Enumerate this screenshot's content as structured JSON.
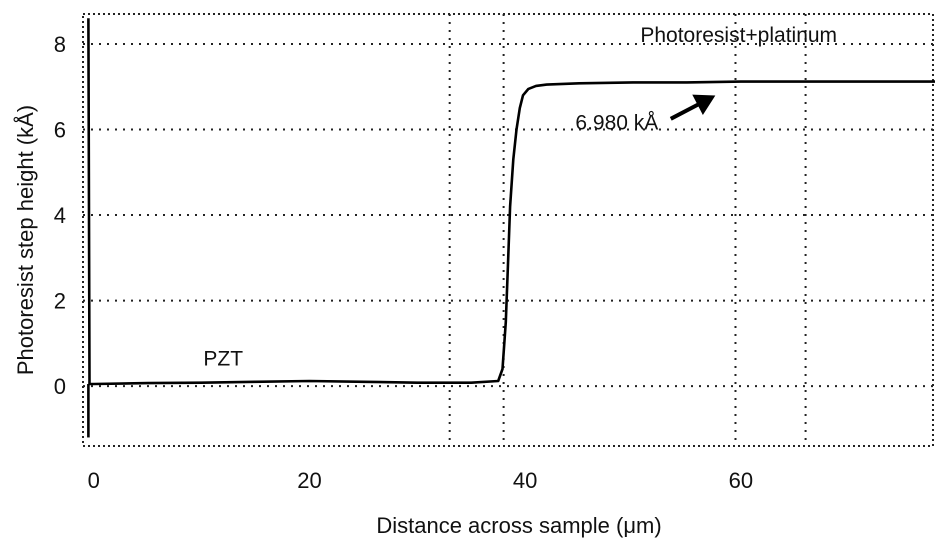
{
  "chart_data": {
    "type": "line",
    "xlabel": "Distance across sample (μm)",
    "ylabel": "Photoresist step height (kÅ)",
    "xlim": [
      -1,
      78
    ],
    "ylim": [
      -1.4,
      8.7
    ],
    "xticks": [
      0,
      20,
      40,
      60
    ],
    "yticks": [
      0,
      2,
      4,
      6,
      8
    ],
    "vertical_gridlines_at": [
      33,
      38,
      59.5,
      66
    ],
    "grid": true,
    "series": [
      {
        "x": [
          -0.5,
          -0.4,
          0,
          5,
          10,
          15,
          20,
          25,
          30,
          35,
          37.5,
          37.9,
          38.2,
          38.4,
          38.6,
          38.9,
          39.2,
          39.5,
          39.8,
          40.3,
          41,
          42,
          45,
          50,
          55,
          60,
          65,
          70,
          75,
          78
        ],
        "y": [
          8.6,
          0.05,
          0.05,
          0.07,
          0.08,
          0.1,
          0.12,
          0.1,
          0.08,
          0.08,
          0.12,
          0.4,
          1.5,
          2.8,
          4.2,
          5.3,
          6.0,
          6.5,
          6.8,
          6.95,
          7.02,
          7.05,
          7.08,
          7.1,
          7.1,
          7.12,
          7.12,
          7.12,
          7.12,
          7.12
        ]
      }
    ],
    "annotations": [
      {
        "text": "Photoresist+platinum"
      },
      {
        "text": "PZT"
      },
      {
        "text": "6.980 kÅ",
        "arrow": true
      }
    ]
  }
}
